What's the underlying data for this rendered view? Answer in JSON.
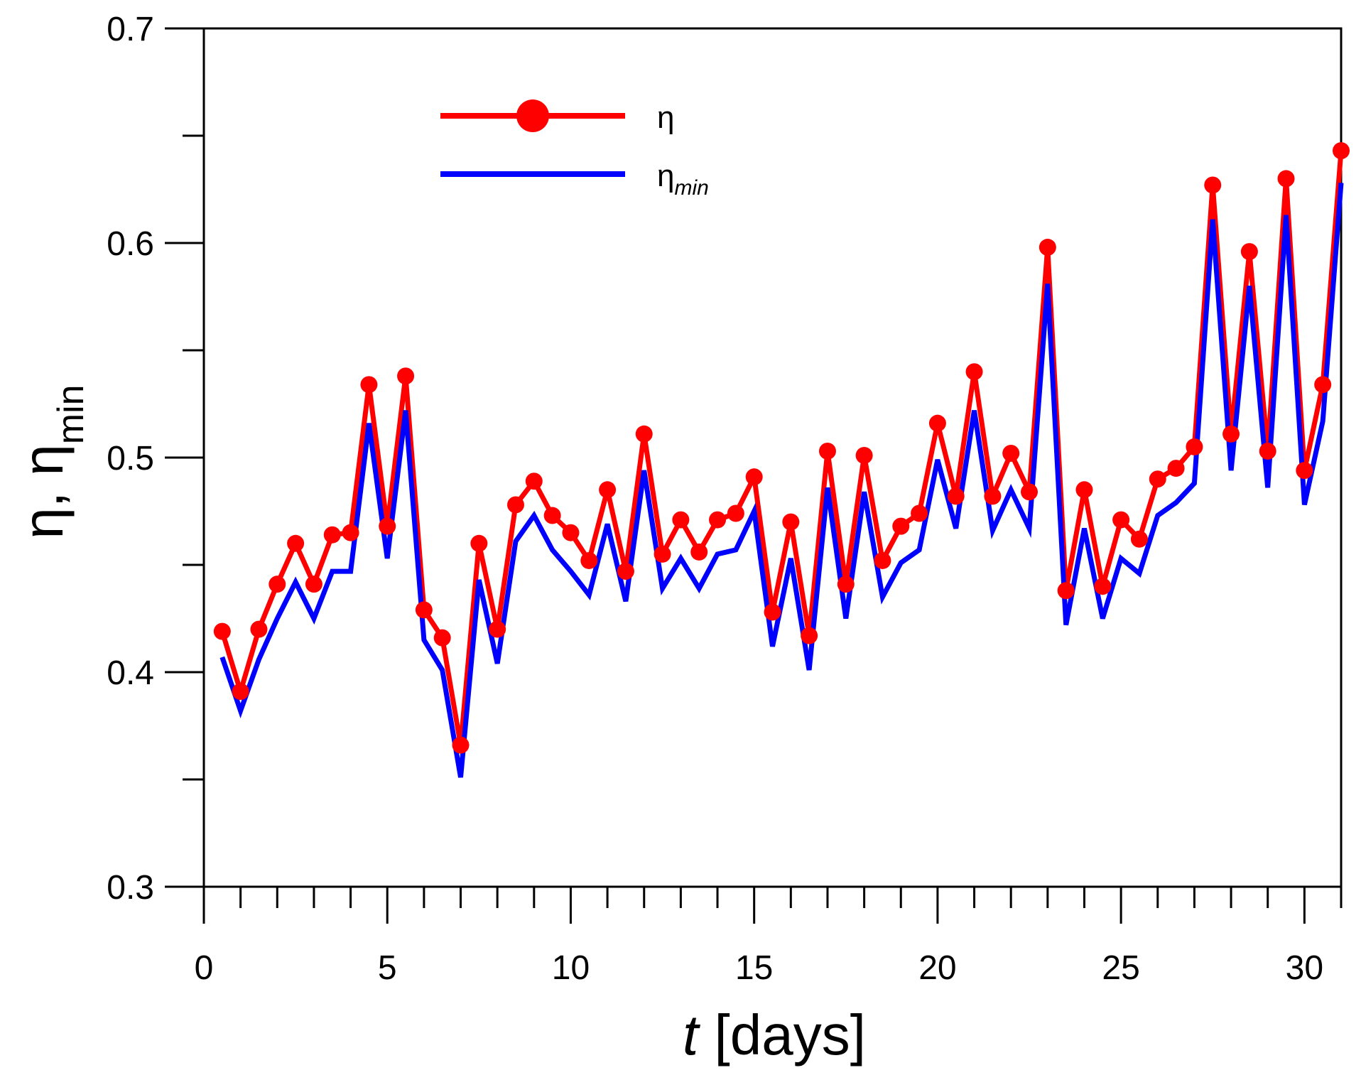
{
  "chart_data": {
    "type": "line",
    "title": "",
    "xlabel_italic": "t",
    "xlabel_rest": " [days]",
    "ylabel_main": "η, η",
    "ylabel_sub": "min",
    "xlim": [
      0,
      31
    ],
    "ylim": [
      0.3,
      0.7
    ],
    "xticks": [
      0,
      5,
      10,
      15,
      20,
      25,
      30
    ],
    "xtick_labels": [
      "0",
      "5",
      "10",
      "15",
      "20",
      "25",
      "30"
    ],
    "xticks_minor": [
      1,
      2,
      3,
      4,
      6,
      7,
      8,
      9,
      11,
      12,
      13,
      14,
      16,
      17,
      18,
      19,
      21,
      22,
      23,
      24,
      26,
      27,
      28,
      29,
      31
    ],
    "yticks": [
      0.3,
      0.4,
      0.5,
      0.6,
      0.7
    ],
    "ytick_labels": [
      "0.3",
      "0.4",
      "0.5",
      "0.6",
      "0.7"
    ],
    "yticks_minor": [
      0.35,
      0.45,
      0.55,
      0.65
    ],
    "grid": false,
    "legend_position": "top-left",
    "series": [
      {
        "name": "η",
        "legend_main": "η",
        "legend_sub": "",
        "color": "#ff0000",
        "marker": "circle",
        "x": [
          0.5,
          1.0,
          1.5,
          2.0,
          2.5,
          3.0,
          3.5,
          4.0,
          4.5,
          5.0,
          5.5,
          6.0,
          6.5,
          7.0,
          7.5,
          8.0,
          8.5,
          9.0,
          9.5,
          10.0,
          10.5,
          11.0,
          11.5,
          12.0,
          12.5,
          13.0,
          13.5,
          14.0,
          14.5,
          15.0,
          15.5,
          16.0,
          16.5,
          17.0,
          17.5,
          18.0,
          18.5,
          19.0,
          19.5,
          20.0,
          20.5,
          21.0,
          21.5,
          22.0,
          22.5,
          23.0,
          23.5,
          24.0,
          24.5,
          25.0,
          25.5,
          26.0,
          26.5,
          27.0,
          27.5,
          28.0,
          28.5,
          29.0,
          29.5,
          30.0,
          30.5,
          31.0
        ],
        "values": [
          0.419,
          0.391,
          0.42,
          0.441,
          0.46,
          0.441,
          0.464,
          0.465,
          0.534,
          0.468,
          0.538,
          0.429,
          0.416,
          0.366,
          0.46,
          0.42,
          0.478,
          0.489,
          0.473,
          0.465,
          0.452,
          0.485,
          0.447,
          0.511,
          0.455,
          0.471,
          0.456,
          0.471,
          0.474,
          0.491,
          0.428,
          0.47,
          0.417,
          0.503,
          0.441,
          0.501,
          0.452,
          0.468,
          0.474,
          0.516,
          0.482,
          0.54,
          0.482,
          0.502,
          0.484,
          0.598,
          0.438,
          0.485,
          0.44,
          0.471,
          0.462,
          0.49,
          0.495,
          0.505,
          0.627,
          0.511,
          0.596,
          0.503,
          0.63,
          0.494,
          0.534,
          0.643
        ]
      },
      {
        "name": "η_min",
        "legend_main": "η",
        "legend_sub": "min",
        "color": "#0000ff",
        "marker": "none",
        "x": [
          0.5,
          1.0,
          1.5,
          2.0,
          2.5,
          3.0,
          3.5,
          4.0,
          4.5,
          5.0,
          5.5,
          6.0,
          6.5,
          7.0,
          7.5,
          8.0,
          8.5,
          9.0,
          9.5,
          10.0,
          10.5,
          11.0,
          11.5,
          12.0,
          12.5,
          13.0,
          13.5,
          14.0,
          14.5,
          15.0,
          15.5,
          16.0,
          16.5,
          17.0,
          17.5,
          18.0,
          18.5,
          19.0,
          19.5,
          20.0,
          20.5,
          21.0,
          21.5,
          22.0,
          22.5,
          23.0,
          23.5,
          24.0,
          24.5,
          25.0,
          25.5,
          26.0,
          26.5,
          27.0,
          27.5,
          28.0,
          28.5,
          29.0,
          29.5,
          30.0,
          30.5,
          31.0
        ],
        "values": [
          0.407,
          0.382,
          0.406,
          0.425,
          0.442,
          0.425,
          0.447,
          0.447,
          0.516,
          0.453,
          0.522,
          0.415,
          0.401,
          0.351,
          0.443,
          0.404,
          0.461,
          0.473,
          0.457,
          0.447,
          0.436,
          0.469,
          0.433,
          0.494,
          0.439,
          0.453,
          0.439,
          0.455,
          0.457,
          0.475,
          0.412,
          0.453,
          0.401,
          0.486,
          0.425,
          0.484,
          0.435,
          0.451,
          0.457,
          0.499,
          0.467,
          0.522,
          0.466,
          0.485,
          0.467,
          0.581,
          0.422,
          0.467,
          0.425,
          0.453,
          0.446,
          0.473,
          0.479,
          0.488,
          0.611,
          0.494,
          0.58,
          0.486,
          0.613,
          0.478,
          0.517,
          0.628
        ]
      }
    ]
  }
}
